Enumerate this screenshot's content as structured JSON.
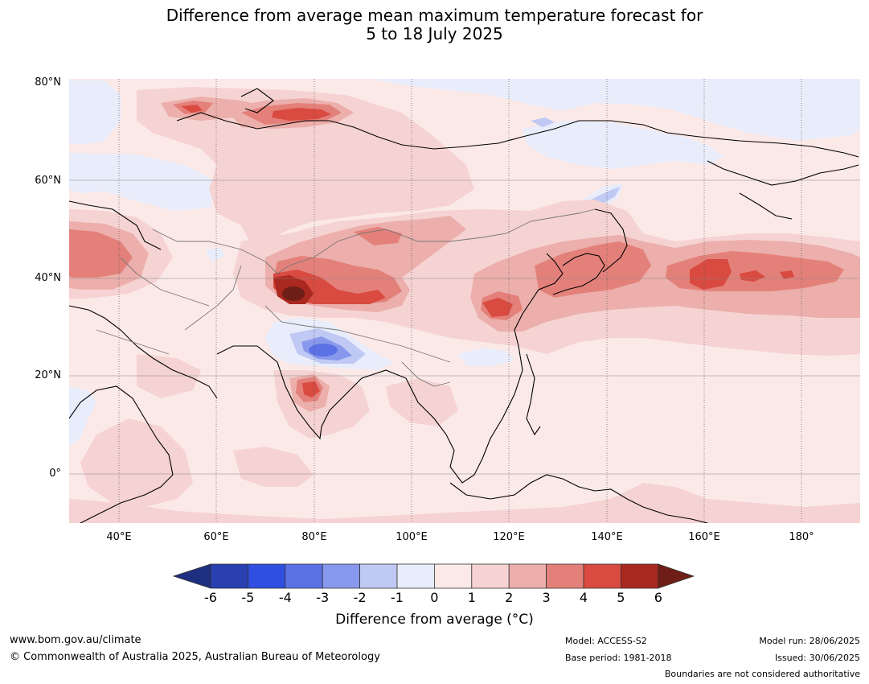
{
  "title_line1": "Difference from average mean maximum temperature forecast for",
  "title_line2": "5 to 18 July 2025",
  "lat_labels": [
    "80°N",
    "60°N",
    "40°N",
    "20°N",
    "0°"
  ],
  "lon_labels": [
    "40°E",
    "60°E",
    "80°E",
    "100°E",
    "120°E",
    "140°E",
    "160°E",
    "180°"
  ],
  "colorbar": {
    "title": "Difference from average (°C)",
    "ticks": [
      "-6",
      "-5",
      "-4",
      "-3",
      "-2",
      "-1",
      "0",
      "1",
      "2",
      "3",
      "4",
      "5",
      "6"
    ],
    "colors": [
      "#1f2f80",
      "#2a3fb0",
      "#2f4fe0",
      "#5b72e6",
      "#8898ec",
      "#c0c9f4",
      "#e9edfb",
      "#fbe9e8",
      "#f5d3d2",
      "#ecafab",
      "#e4807a",
      "#d94a41",
      "#a9281f",
      "#6e1d17"
    ]
  },
  "footer": {
    "website": "www.bom.gov.au/climate",
    "copyright": "© Commonwealth of Australia 2025, Australian Bureau of Meteorology",
    "model": "Model: ACCESS-S2",
    "base_period": "Base period: 1981-2018",
    "model_run": "Model run: 28/06/2025",
    "issued": "Issued: 30/06/2025",
    "disclaimer": "Boundaries are not considered authoritative"
  }
}
